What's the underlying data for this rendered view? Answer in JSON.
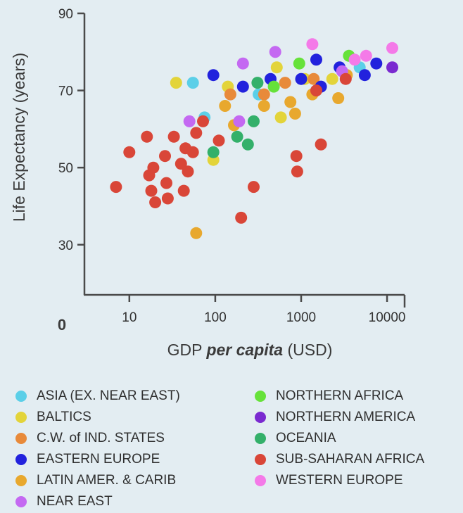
{
  "chart_data": {
    "type": "scatter",
    "xlabel_main": "GDP ",
    "xlabel_italic": "per capita",
    "xlabel_unit": " (USD)",
    "ylabel": "Life Expectancy (years)",
    "x_scale": "log",
    "xlim": [
      3,
      16000
    ],
    "ylim": [
      17,
      90
    ],
    "x_ticks": [
      10,
      100,
      1000,
      10000
    ],
    "x_tick_labels": [
      "10",
      "100",
      "1000",
      "10000"
    ],
    "y_ticks": [
      30,
      50,
      70,
      90
    ],
    "y_tick_labels": [
      "30",
      "50",
      "70",
      "90"
    ],
    "origin_label": "0",
    "legend_position": "bottom",
    "series": [
      {
        "name": "ASIA (EX. NEAR EAST)",
        "color": "#5bcfe8",
        "points": [
          [
            55,
            72
          ],
          [
            75,
            63
          ],
          [
            320,
            69
          ],
          [
            4800,
            76
          ]
        ]
      },
      {
        "name": "BALTICS",
        "color": "#e3d43a",
        "points": [
          [
            35,
            72
          ],
          [
            95,
            52
          ],
          [
            140,
            71
          ],
          [
            520,
            76
          ],
          [
            580,
            63
          ],
          [
            1100,
            73
          ],
          [
            2300,
            73
          ]
        ]
      },
      {
        "name": "C.W. of IND. STATES",
        "color": "#e88a3a",
        "points": [
          [
            150,
            69
          ],
          [
            370,
            69
          ],
          [
            650,
            72
          ],
          [
            1400,
            73
          ]
        ]
      },
      {
        "name": "EASTERN EUROPE",
        "color": "#2222dd",
        "points": [
          [
            95,
            74
          ],
          [
            210,
            71
          ],
          [
            440,
            73
          ],
          [
            1000,
            73
          ],
          [
            1500,
            78
          ],
          [
            1700,
            71
          ],
          [
            2800,
            76
          ],
          [
            5500,
            74
          ],
          [
            7500,
            77
          ]
        ]
      },
      {
        "name": "LATIN AMER. & CARIB",
        "color": "#e8a82e",
        "points": [
          [
            60,
            33
          ],
          [
            130,
            66
          ],
          [
            165,
            61
          ],
          [
            370,
            66
          ],
          [
            750,
            67
          ],
          [
            850,
            64
          ],
          [
            1350,
            69
          ],
          [
            2700,
            68
          ],
          [
            3400,
            74
          ]
        ]
      },
      {
        "name": "NEAR EAST",
        "color": "#c469f2",
        "points": [
          [
            50,
            62
          ],
          [
            190,
            62
          ],
          [
            210,
            77
          ],
          [
            500,
            80
          ],
          [
            3000,
            75
          ]
        ]
      },
      {
        "name": "NORTHERN AFRICA",
        "color": "#66e23a",
        "points": [
          [
            480,
            71
          ],
          [
            950,
            77
          ],
          [
            3600,
            79
          ]
        ]
      },
      {
        "name": "NORTHERN AMERICA",
        "color": "#7a2ad0",
        "points": [
          [
            11500,
            76
          ]
        ]
      },
      {
        "name": "OCEANIA",
        "color": "#33b06a",
        "points": [
          [
            95,
            54
          ],
          [
            180,
            58
          ],
          [
            240,
            56
          ],
          [
            280,
            62
          ],
          [
            310,
            72
          ]
        ]
      },
      {
        "name": "SUB-SAHARAN AFRICA",
        "color": "#d94638",
        "points": [
          [
            7,
            45
          ],
          [
            10,
            54
          ],
          [
            16,
            58
          ],
          [
            17,
            48
          ],
          [
            18,
            44
          ],
          [
            19,
            50
          ],
          [
            20,
            41
          ],
          [
            26,
            53
          ],
          [
            27,
            46
          ],
          [
            28,
            42
          ],
          [
            33,
            58
          ],
          [
            40,
            51
          ],
          [
            43,
            44
          ],
          [
            45,
            55
          ],
          [
            48,
            49
          ],
          [
            55,
            54
          ],
          [
            60,
            59
          ],
          [
            72,
            62
          ],
          [
            110,
            57
          ],
          [
            200,
            37
          ],
          [
            280,
            45
          ],
          [
            880,
            53
          ],
          [
            900,
            49
          ],
          [
            1500,
            70
          ],
          [
            1700,
            56
          ],
          [
            3300,
            73
          ]
        ]
      },
      {
        "name": "WESTERN EUROPE",
        "color": "#f47ae8",
        "points": [
          [
            1350,
            82
          ],
          [
            4200,
            78
          ],
          [
            5700,
            79
          ],
          [
            11500,
            81
          ]
        ]
      }
    ]
  }
}
